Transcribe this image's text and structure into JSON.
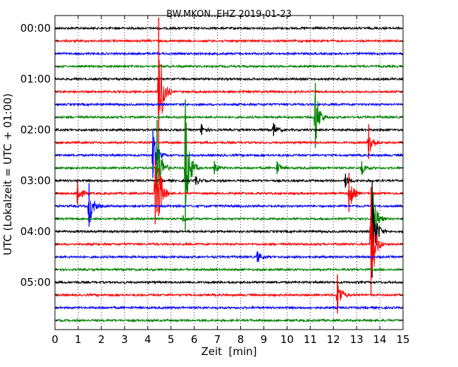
{
  "chart_data": {
    "type": "line",
    "title": "BW.MKON..EHZ 2019-01-23",
    "xlabel": "Zeit  [min]",
    "ylabel": "UTC (Lokalzeit = UTC + 01:00)",
    "xlim": [
      0,
      15
    ],
    "x_ticks": [
      "0",
      "1",
      "2",
      "3",
      "4",
      "5",
      "6",
      "7",
      "8",
      "9",
      "10",
      "11",
      "12",
      "13",
      "14",
      "15"
    ],
    "y_ticks": [
      "00:00",
      "01:00",
      "02:00",
      "03:00",
      "04:00",
      "05:00"
    ],
    "trace_interval_min": 15,
    "trace_count": 24,
    "trace_colors": [
      "#000000",
      "#ff0000",
      "#0000ff",
      "#008000"
    ],
    "grid": "dotted vertical at each minute",
    "events": [
      {
        "trace": 13,
        "minute": 0.95,
        "amp": 1.1
      },
      {
        "trace": 14,
        "minute": 1.45,
        "amp": 2.0
      },
      {
        "trace": 5,
        "minute": 4.45,
        "amp": 6.5
      },
      {
        "trace": 13,
        "minute": 4.3,
        "amp": 3.0
      },
      {
        "trace": 13,
        "minute": 4.45,
        "amp": 2.2
      },
      {
        "trace": 8,
        "minute": 6.3,
        "amp": 0.5
      },
      {
        "trace": 8,
        "minute": 9.4,
        "amp": 0.6
      },
      {
        "trace": 9,
        "minute": 13.5,
        "amp": 1.6
      },
      {
        "trace": 10,
        "minute": 4.2,
        "amp": 2.2
      },
      {
        "trace": 11,
        "minute": 4.38,
        "amp": 4.2
      },
      {
        "trace": 11,
        "minute": 5.6,
        "amp": 6.0
      },
      {
        "trace": 11,
        "minute": 6.85,
        "amp": 0.6
      },
      {
        "trace": 11,
        "minute": 9.55,
        "amp": 0.6
      },
      {
        "trace": 11,
        "minute": 13.2,
        "amp": 0.6
      },
      {
        "trace": 12,
        "minute": 6.05,
        "amp": 0.4
      },
      {
        "trace": 12,
        "minute": 12.5,
        "amp": 0.6
      },
      {
        "trace": 13,
        "minute": 12.65,
        "amp": 1.8
      },
      {
        "trace": 15,
        "minute": 5.5,
        "amp": 0.3
      },
      {
        "trace": 15,
        "minute": 13.7,
        "amp": 2.3
      },
      {
        "trace": 16,
        "minute": 13.65,
        "amp": 4.5
      },
      {
        "trace": 18,
        "minute": 8.7,
        "amp": 0.5
      },
      {
        "trace": 7,
        "minute": 11.2,
        "amp": 3.0
      },
      {
        "trace": 21,
        "minute": 12.15,
        "amp": 1.8
      },
      {
        "trace": 17,
        "minute": 13.6,
        "amp": 5.0
      }
    ]
  }
}
